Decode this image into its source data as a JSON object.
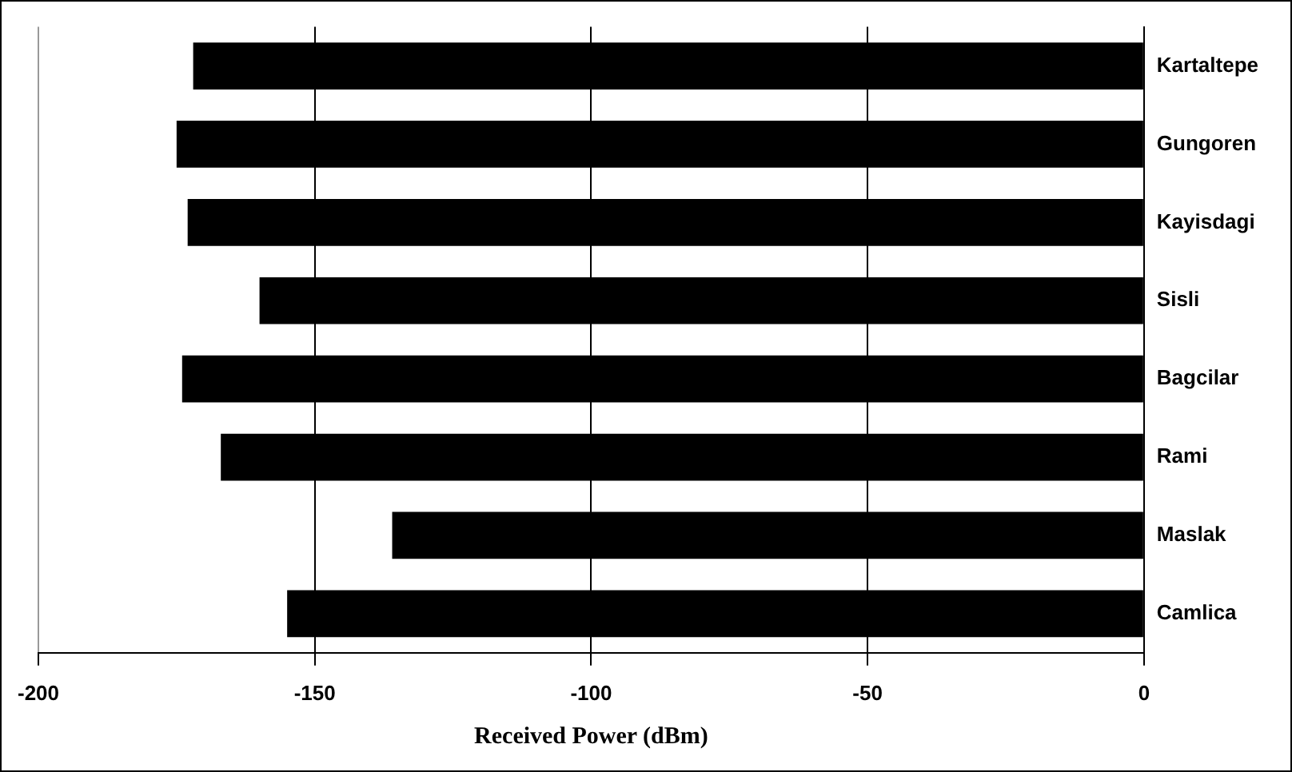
{
  "chart_data": {
    "type": "bar",
    "orientation": "horizontal",
    "xlabel": "Received Power (dBm)",
    "categories": [
      "Kartaltepe",
      "Gungoren",
      "Kayisdagi",
      "Sisli",
      "Bagcilar",
      "Rami",
      "Maslak",
      "Camlica"
    ],
    "values": [
      -172,
      -175,
      -173,
      -160,
      -174,
      -167,
      -136,
      -155
    ],
    "color": "#000000",
    "xlim": [
      -200,
      0
    ],
    "xticks": [
      -200,
      -150,
      -100,
      -50,
      0
    ],
    "grid": "x",
    "legend": false
  }
}
